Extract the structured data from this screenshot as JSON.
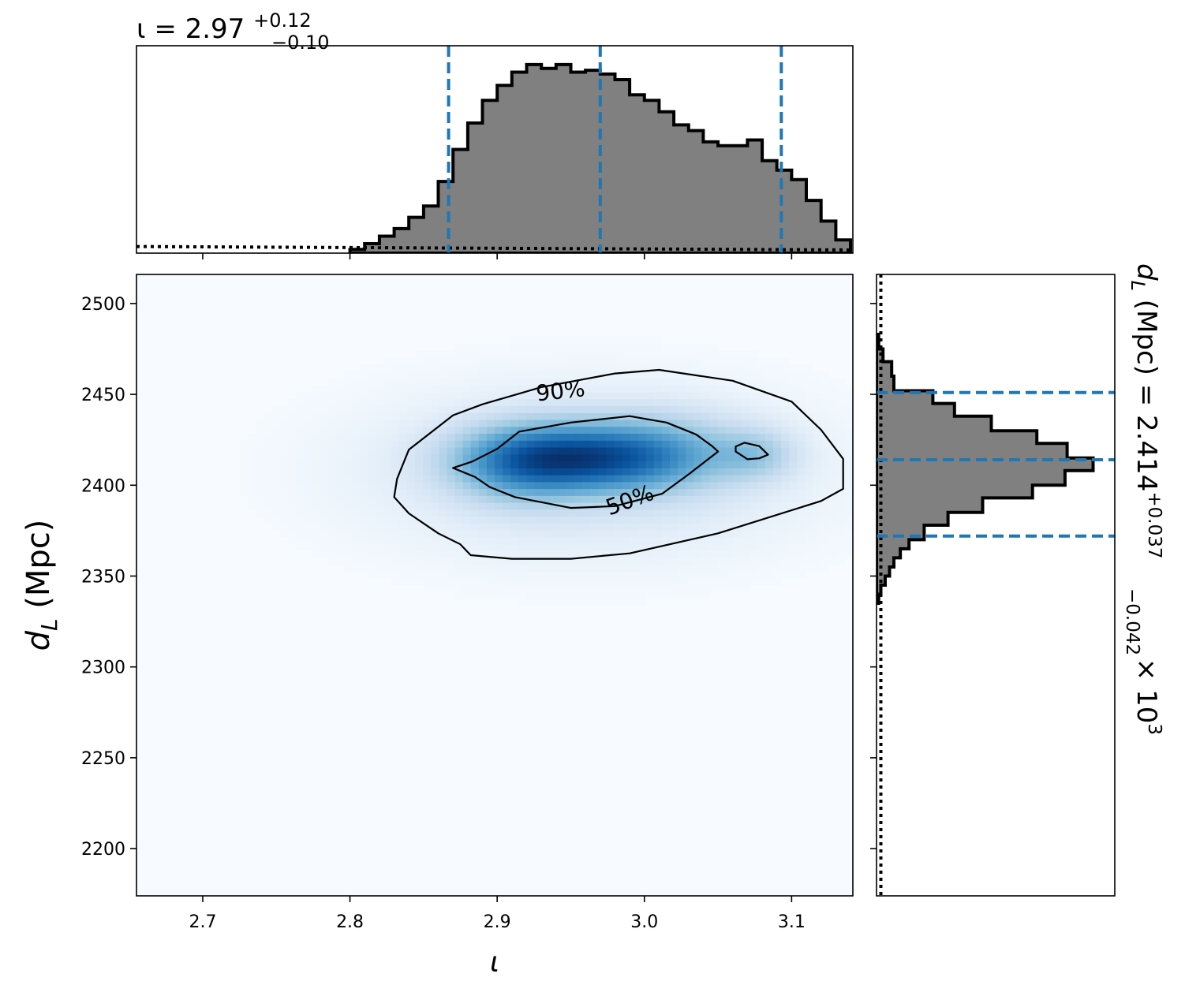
{
  "chart_data": [
    {
      "type": "histogram",
      "panel": "top-marginal",
      "title_main": "ι = 2.97",
      "title_sup": "+0.12",
      "title_sub": "−0.10",
      "xlim": [
        2.655,
        3.1416
      ],
      "x_tick_values": [
        2.7,
        2.8,
        2.9,
        3.0,
        3.1
      ],
      "y_ticks_shown": false,
      "bin_edges": [
        2.8,
        2.81,
        2.82,
        2.83,
        2.84,
        2.85,
        2.86,
        2.87,
        2.88,
        2.89,
        2.9,
        2.91,
        2.92,
        2.93,
        2.94,
        2.95,
        2.96,
        2.97,
        2.98,
        2.99,
        3.0,
        3.01,
        3.02,
        3.03,
        3.04,
        3.05,
        3.06,
        3.07,
        3.08,
        3.09,
        3.1,
        3.11,
        3.12,
        3.13,
        3.14
      ],
      "counts": [
        0.02,
        0.05,
        0.09,
        0.13,
        0.19,
        0.25,
        0.38,
        0.55,
        0.69,
        0.81,
        0.89,
        0.96,
        1.0,
        0.98,
        1.0,
        0.96,
        0.97,
        0.95,
        0.92,
        0.84,
        0.81,
        0.75,
        0.68,
        0.65,
        0.59,
        0.57,
        0.57,
        0.6,
        0.49,
        0.44,
        0.39,
        0.28,
        0.17,
        0.07
      ],
      "ylim": [
        0,
        1.1
      ],
      "prior_level": 0.035,
      "quantile_lines": [
        2.867,
        2.97,
        3.093
      ],
      "colors": {
        "fill": "#808080",
        "edge": "#000000",
        "quantile": "#1f77b4"
      }
    },
    {
      "type": "heatmap",
      "panel": "joint-2d-density",
      "xlabel": "ι",
      "ylabel": "d_L (Mpc)",
      "ylabel_main": "d",
      "ylabel_sub": "L",
      "ylabel_rest": " (Mpc)",
      "xlim": [
        2.655,
        3.1416
      ],
      "ylim": [
        2174,
        2516
      ],
      "x_tick_values": [
        2.7,
        2.8,
        2.9,
        3.0,
        3.1
      ],
      "y_tick_values": [
        2200,
        2250,
        2300,
        2350,
        2400,
        2450,
        2500
      ],
      "colormap": "Blues",
      "density_peaks": [
        {
          "x": 2.955,
          "y": 2415,
          "sx": 0.045,
          "sy": 12,
          "w": 1.0
        },
        {
          "x": 2.915,
          "y": 2412,
          "sx": 0.03,
          "sy": 14,
          "w": 0.45
        },
        {
          "x": 3.01,
          "y": 2418,
          "sx": 0.04,
          "sy": 14,
          "w": 0.4
        },
        {
          "x": 3.075,
          "y": 2417,
          "sx": 0.018,
          "sy": 9,
          "w": 0.3
        },
        {
          "x": 2.96,
          "y": 2408,
          "sx": 0.09,
          "sy": 28,
          "w": 0.18
        }
      ],
      "contours": [
        {
          "label": "50%",
          "points": [
            [
              2.87,
              2.4095
            ],
            [
              2.885,
              2.4045
            ],
            [
              2.895,
              2.399
            ],
            [
              2.912,
              2.3935
            ],
            [
              2.95,
              2.3875
            ],
            [
              2.98,
              2.3885
            ],
            [
              3.012,
              2.3953
            ],
            [
              3.03,
              2.406
            ],
            [
              3.05,
              2.4185
            ],
            [
              3.046,
              2.4215
            ],
            [
              3.035,
              2.428
            ],
            [
              3.015,
              2.4345
            ],
            [
              2.99,
              2.438
            ],
            [
              2.95,
              2.4345
            ],
            [
              2.915,
              2.4295
            ],
            [
              2.9,
              2.42
            ],
            [
              2.883,
              2.413
            ]
          ]
        },
        {
          "label": "",
          "points": [
            [
              3.062,
              2.4185
            ],
            [
              3.07,
              2.4143
            ],
            [
              3.078,
              2.4148
            ],
            [
              3.084,
              2.4168
            ],
            [
              3.078,
              2.4215
            ],
            [
              3.068,
              2.4234
            ],
            [
              3.062,
              2.4213
            ]
          ]
        },
        {
          "label": "90%",
          "points": [
            [
              2.83,
              2.3935
            ],
            [
              2.84,
              2.3845
            ],
            [
              2.86,
              2.3735
            ],
            [
              2.875,
              2.3675
            ],
            [
              2.882,
              2.3615
            ],
            [
              2.91,
              2.3595
            ],
            [
              2.95,
              2.3595
            ],
            [
              2.99,
              2.3625
            ],
            [
              3.05,
              2.3735
            ],
            [
              3.12,
              2.3913
            ],
            [
              3.135,
              2.398
            ],
            [
              3.135,
              2.4145
            ],
            [
              3.12,
              2.4305
            ],
            [
              3.1,
              2.446
            ],
            [
              3.06,
              2.4575
            ],
            [
              3.01,
              2.4635
            ],
            [
              2.98,
              2.4615
            ],
            [
              2.93,
              2.454
            ],
            [
              2.89,
              2.4445
            ],
            [
              2.87,
              2.4385
            ],
            [
              2.84,
              2.4195
            ],
            [
              2.832,
              2.4035
            ]
          ]
        }
      ],
      "contour_labels": [
        {
          "text": "90%",
          "x": 2.943,
          "y": 2452,
          "angle": -6
        },
        {
          "text": "50%",
          "x": 2.99,
          "y": 2392,
          "angle": -20
        }
      ]
    },
    {
      "type": "histogram",
      "panel": "right-marginal",
      "orientation": "horizontal",
      "title_main": "d",
      "title_sub_L": "L",
      "title_mid": " (Mpc) = 2.414",
      "title_sup": "+0.037",
      "title_sub": "−0.042",
      "title_tail": " × 10",
      "title_exp": "3",
      "ylim": [
        2174,
        2516
      ],
      "bin_edges": [
        2335,
        2340,
        2345,
        2350,
        2355,
        2360,
        2365,
        2370,
        2378,
        2385,
        2393,
        2400,
        2408,
        2415,
        2423,
        2430,
        2438,
        2445,
        2452,
        2460,
        2468,
        2475,
        2483
      ],
      "counts": [
        0.01,
        0.02,
        0.04,
        0.06,
        0.08,
        0.11,
        0.15,
        0.22,
        0.33,
        0.49,
        0.72,
        0.87,
        1.0,
        0.88,
        0.74,
        0.53,
        0.36,
        0.26,
        0.08,
        0.07,
        0.03,
        0.01
      ],
      "xlim": [
        0,
        1.1
      ],
      "prior_level": 0.02,
      "quantile_lines": [
        2372,
        2414,
        2451
      ],
      "colors": {
        "fill": "#808080",
        "edge": "#000000",
        "quantile": "#1f77b4"
      }
    }
  ]
}
